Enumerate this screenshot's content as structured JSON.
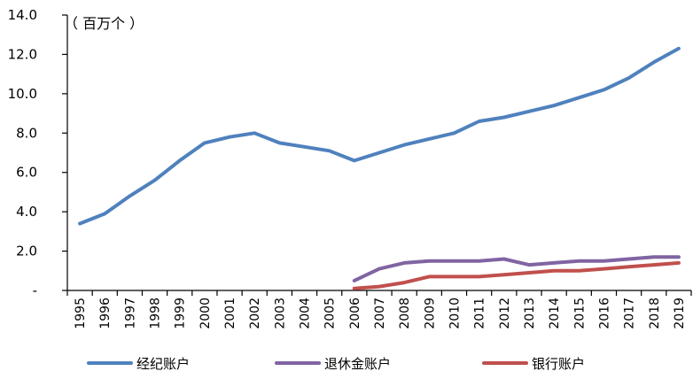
{
  "chart_data": {
    "type": "line",
    "unit_label": "（ 百万个 ）",
    "x": [
      "1995",
      "1996",
      "1997",
      "1998",
      "1999",
      "2000",
      "2001",
      "2002",
      "2003",
      "2004",
      "2005",
      "2006",
      "2007",
      "2008",
      "2009",
      "2010",
      "2011",
      "2012",
      "2013",
      "2014",
      "2015",
      "2016",
      "2017",
      "2018",
      "2019"
    ],
    "yticks": [
      "14.0",
      "12.0",
      "10.0",
      "8.0",
      "6.0",
      "4.0",
      "2.0",
      "-"
    ],
    "ylim": [
      0,
      14
    ],
    "grid": false,
    "legend_position": "bottom",
    "series": [
      {
        "name": "经纪账户",
        "color": "#4f81bd",
        "values": [
          3.4,
          3.9,
          4.8,
          5.6,
          6.6,
          7.5,
          7.8,
          8.0,
          7.5,
          7.3,
          7.1,
          6.6,
          7.0,
          7.4,
          7.7,
          8.0,
          8.6,
          8.8,
          9.1,
          9.4,
          9.8,
          10.2,
          10.8,
          11.6,
          12.3
        ]
      },
      {
        "name": "退休金账户",
        "color": "#8064a2",
        "values": [
          null,
          null,
          null,
          null,
          null,
          null,
          null,
          null,
          null,
          null,
          null,
          0.5,
          1.1,
          1.4,
          1.5,
          1.5,
          1.5,
          1.6,
          1.3,
          1.4,
          1.5,
          1.5,
          1.6,
          1.7,
          1.7
        ]
      },
      {
        "name": "银行账户",
        "color": "#c0504d",
        "values": [
          null,
          null,
          null,
          null,
          null,
          null,
          null,
          null,
          null,
          null,
          null,
          0.1,
          0.2,
          0.4,
          0.7,
          0.7,
          0.7,
          0.8,
          0.9,
          1.0,
          1.0,
          1.1,
          1.2,
          1.3,
          1.4
        ]
      }
    ]
  }
}
